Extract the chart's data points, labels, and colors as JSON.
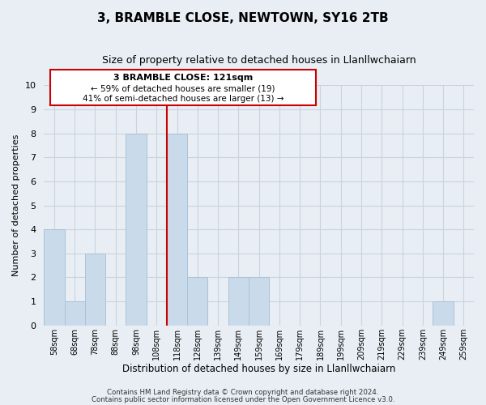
{
  "title": "3, BRAMBLE CLOSE, NEWTOWN, SY16 2TB",
  "subtitle": "Size of property relative to detached houses in Llanllwchaiarn",
  "xlabel": "Distribution of detached houses by size in Llanllwchaiarn",
  "ylabel": "Number of detached properties",
  "bin_labels": [
    "58sqm",
    "68sqm",
    "78sqm",
    "88sqm",
    "98sqm",
    "108sqm",
    "118sqm",
    "128sqm",
    "139sqm",
    "149sqm",
    "159sqm",
    "169sqm",
    "179sqm",
    "189sqm",
    "199sqm",
    "209sqm",
    "219sqm",
    "229sqm",
    "239sqm",
    "249sqm",
    "259sqm"
  ],
  "bar_heights": [
    4,
    1,
    3,
    0,
    8,
    0,
    8,
    2,
    0,
    2,
    2,
    0,
    0,
    0,
    0,
    0,
    0,
    0,
    0,
    1,
    0
  ],
  "bar_color": "#c9daea",
  "bar_edge_color": "#a8c4d8",
  "property_line_color": "#cc0000",
  "annotation_title": "3 BRAMBLE CLOSE: 121sqm",
  "annotation_line1": "← 59% of detached houses are smaller (19)",
  "annotation_line2": "41% of semi-detached houses are larger (13) →",
  "annotation_box_color": "#ffffff",
  "annotation_border_color": "#cc0000",
  "ylim": [
    0,
    10
  ],
  "yticks": [
    0,
    1,
    2,
    3,
    4,
    5,
    6,
    7,
    8,
    9,
    10
  ],
  "footer1": "Contains HM Land Registry data © Crown copyright and database right 2024.",
  "footer2": "Contains public sector information licensed under the Open Government Licence v3.0.",
  "background_color": "#e8eef4",
  "plot_background_color": "#e8eef4",
  "grid_color": "#c8d4e0",
  "title_fontsize": 11,
  "subtitle_fontsize": 9
}
